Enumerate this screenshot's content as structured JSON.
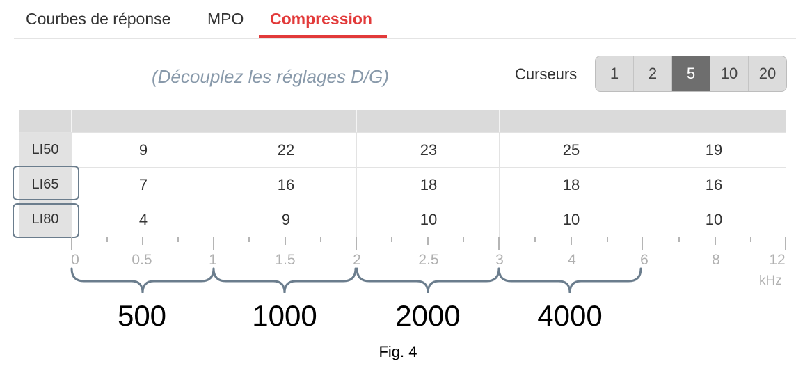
{
  "tabs": [
    {
      "label": "Courbes de réponse"
    },
    {
      "label": "MPO"
    },
    {
      "label": "Compression"
    }
  ],
  "active_tab": "Compression",
  "hint": "(Découplez les réglages D/G)",
  "cursors": {
    "label": "Curseurs",
    "options": [
      "1",
      "2",
      "5",
      "10",
      "20"
    ],
    "selected": "5"
  },
  "table": {
    "rows": [
      {
        "label": "LI50",
        "values": [
          "9",
          "22",
          "23",
          "25",
          "19"
        ]
      },
      {
        "label": "LI65",
        "values": [
          "7",
          "16",
          "18",
          "18",
          "16"
        ]
      },
      {
        "label": "LI80",
        "values": [
          "4",
          "9",
          "10",
          "10",
          "10"
        ]
      }
    ],
    "highlighted_rows": [
      "LI65",
      "LI80"
    ]
  },
  "axis": {
    "tick_labels": [
      "0",
      "0.5",
      "1",
      "1.5",
      "2",
      "2.5",
      "3",
      "4",
      "6",
      "8",
      "12"
    ],
    "unit": "kHz"
  },
  "bands": [
    "500",
    "1000",
    "2000",
    "4000"
  ],
  "caption": "Fig. 4",
  "colors": {
    "accent": "#e23a3a",
    "annotation": "#6b7d8d",
    "selected_segment": "#6e6e6e"
  }
}
